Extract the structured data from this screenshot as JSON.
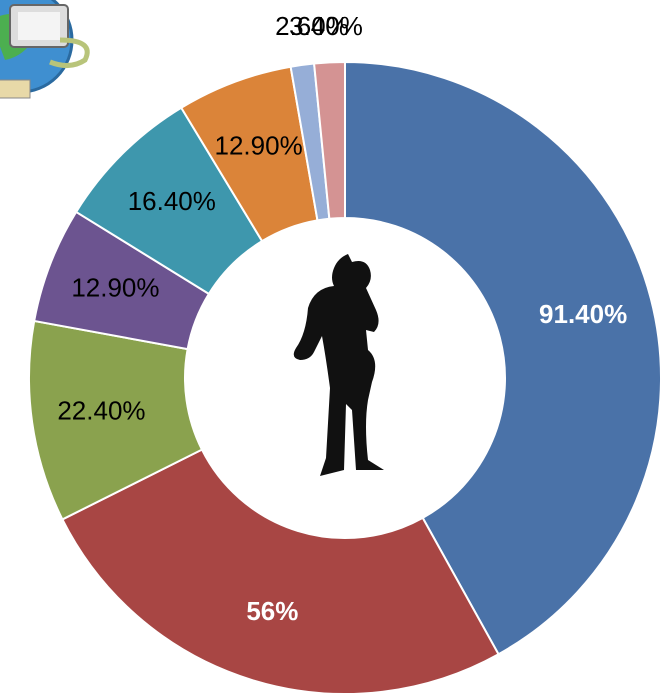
{
  "chart_data": {
    "type": "donut",
    "categories": [
      null,
      null,
      null,
      null,
      null,
      null,
      null,
      null
    ],
    "values": [
      91.4,
      56,
      22.4,
      12.9,
      16.4,
      12.9,
      2.6,
      3.4
    ],
    "value_labels": [
      "91.40%",
      "56%",
      "22.40%",
      "12.90%",
      "16.40%",
      "12.90%",
      "2.60%",
      "3.40%"
    ],
    "colors": [
      "#4a72a8",
      "#a84644",
      "#8aa24e",
      "#6c5490",
      "#3e97ad",
      "#db8439",
      "#96aed7",
      "#d49393"
    ]
  }
}
